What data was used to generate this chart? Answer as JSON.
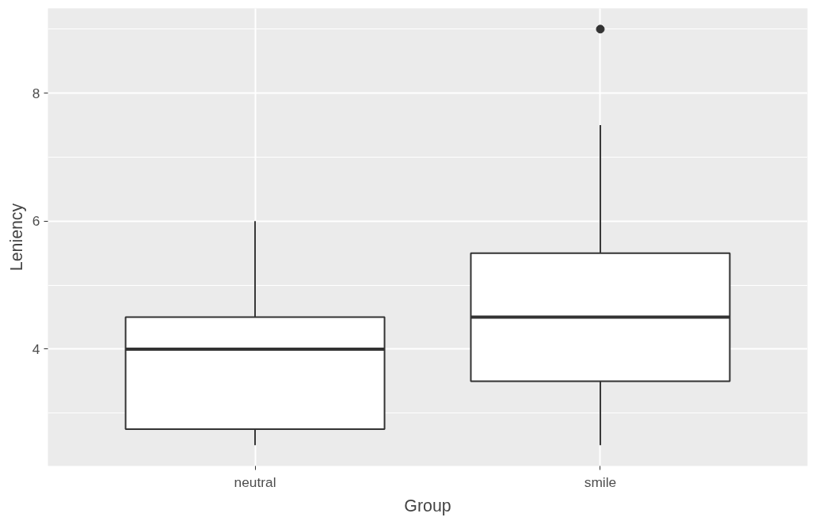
{
  "chart_data": {
    "type": "box",
    "xlabel": "Group",
    "ylabel": "Leniency",
    "categories": [
      "neutral",
      "smile"
    ],
    "boxes": [
      {
        "low": 2.5,
        "q1": 2.75,
        "median": 4,
        "q3": 4.5,
        "high": 6
      },
      {
        "low": 2.5,
        "q1": 3.5,
        "median": 4.5,
        "q3": 5.5,
        "high": 7.5,
        "outliers": [
          9
        ]
      }
    ],
    "ylim": [
      2.175,
      9.325
    ],
    "yticks": [
      4,
      6,
      8
    ],
    "grid": true
  }
}
